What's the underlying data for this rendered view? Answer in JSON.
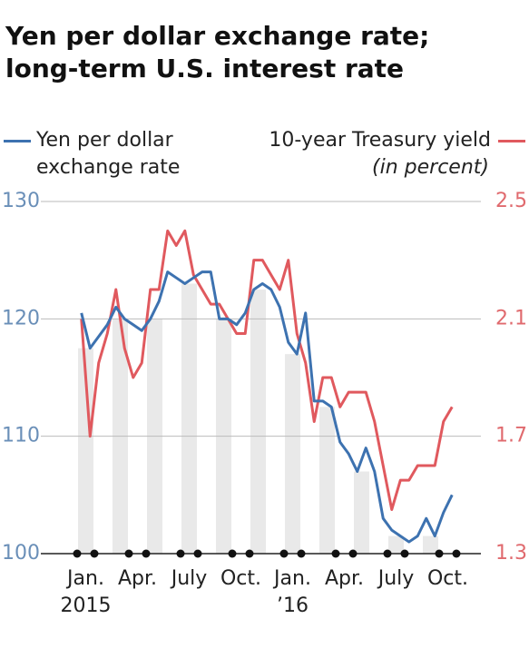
{
  "chart_data": {
    "type": "line",
    "title": "Yen per dollar exchange rate; long-term U.S. interest rate",
    "categories": [
      null,
      null,
      null,
      null,
      null,
      null,
      null,
      null,
      null,
      null,
      null,
      null,
      null,
      null,
      null,
      null,
      null,
      null,
      null,
      null,
      null,
      null,
      null,
      null,
      null,
      null,
      null,
      null,
      null,
      null,
      null,
      null,
      null,
      null,
      null,
      null,
      null,
      null,
      null,
      null,
      null,
      null,
      null,
      null
    ],
    "xlim": [
      -0.5,
      43.5
    ],
    "xticks": [
      {
        "value": 0.5,
        "label": "Jan."
      },
      {
        "value": 6.5,
        "label": "Apr."
      },
      {
        "value": 12.5,
        "label": "July"
      },
      {
        "value": 18.5,
        "label": "Oct."
      },
      {
        "value": 24.5,
        "label": "Jan."
      },
      {
        "value": 30.5,
        "label": "Apr."
      },
      {
        "value": 36.5,
        "label": "July"
      },
      {
        "value": 42.5,
        "label": "Oct."
      }
    ],
    "year_labels": [
      {
        "value": 0.5,
        "label": "2015"
      },
      {
        "value": 24.5,
        "label": "’16"
      }
    ],
    "y2label": "(in percent)",
    "series": [
      {
        "name": "Yen per dollar exchange rate",
        "color": "#3d72b0",
        "values": [
          120.5,
          117.5,
          118.5,
          119.5,
          121,
          120,
          119.5,
          119,
          120,
          121.5,
          124,
          123.5,
          123,
          123.5,
          124,
          124,
          120,
          120,
          119.5,
          120.5,
          122.5,
          123,
          122.5,
          121,
          118,
          117,
          120.5,
          113,
          113,
          112.5,
          109.5,
          108.5,
          107,
          109,
          107,
          103,
          102,
          101.5,
          101,
          101.5,
          103,
          101.5,
          103.5,
          105
        ]
      },
      {
        "name": "10-year Treasury yield",
        "color": "#e0595e",
        "axis": "y2",
        "values": [
          2.1,
          1.7,
          1.95,
          2.05,
          2.2,
          2.0,
          1.9,
          1.95,
          2.2,
          2.2,
          2.4,
          2.35,
          2.4,
          2.25,
          2.2,
          2.15,
          2.15,
          2.1,
          2.05,
          2.05,
          2.3,
          2.3,
          2.25,
          2.2,
          2.3,
          2.05,
          1.95,
          1.75,
          1.9,
          1.9,
          1.8,
          1.85,
          1.85,
          1.85,
          1.75,
          1.6,
          1.45,
          1.55,
          1.55,
          1.6,
          1.6,
          1.6,
          1.75,
          1.8
        ]
      }
    ],
    "ylim": [
      100,
      130
    ],
    "yticks": [
      100,
      110,
      120,
      130
    ],
    "y2lim": [
      1.3,
      2.5
    ],
    "y2ticks": [
      1.3,
      1.7,
      2.1,
      2.5
    ],
    "grid": true
  }
}
